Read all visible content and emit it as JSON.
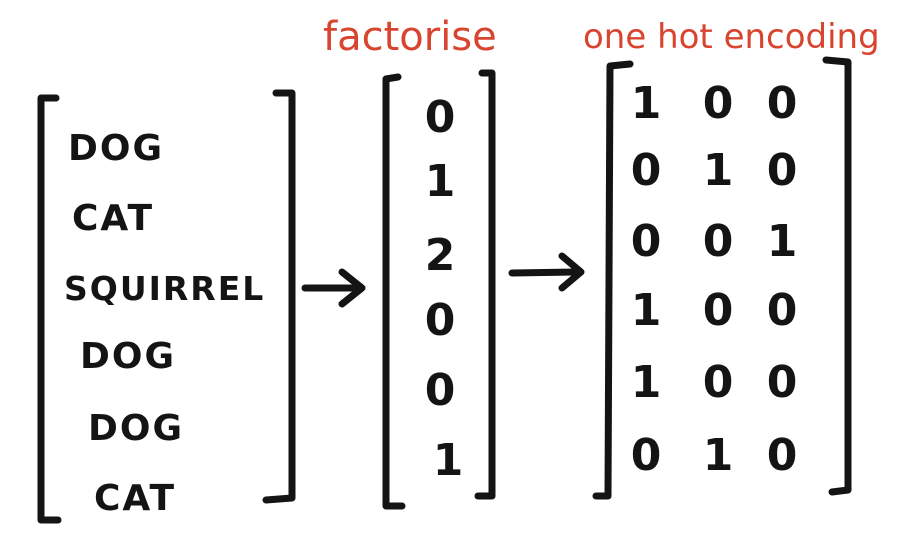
{
  "annotations": {
    "factorise": "factorise",
    "one_hot": "one hot encoding",
    "color": "#d9442f"
  },
  "categories": [
    "DOG",
    "CAT",
    "SQUIRREL",
    "DOG",
    "DOG",
    "CAT"
  ],
  "codes": [
    "0",
    "1",
    "2",
    "0",
    "0",
    "1"
  ],
  "one_hot": [
    [
      "1",
      "0",
      "0"
    ],
    [
      "0",
      "1",
      "0"
    ],
    [
      "0",
      "0",
      "1"
    ],
    [
      "1",
      "0",
      "0"
    ],
    [
      "1",
      "0",
      "0"
    ],
    [
      "0",
      "1",
      "0"
    ]
  ],
  "arrows": [
    "arrow",
    "arrow"
  ]
}
